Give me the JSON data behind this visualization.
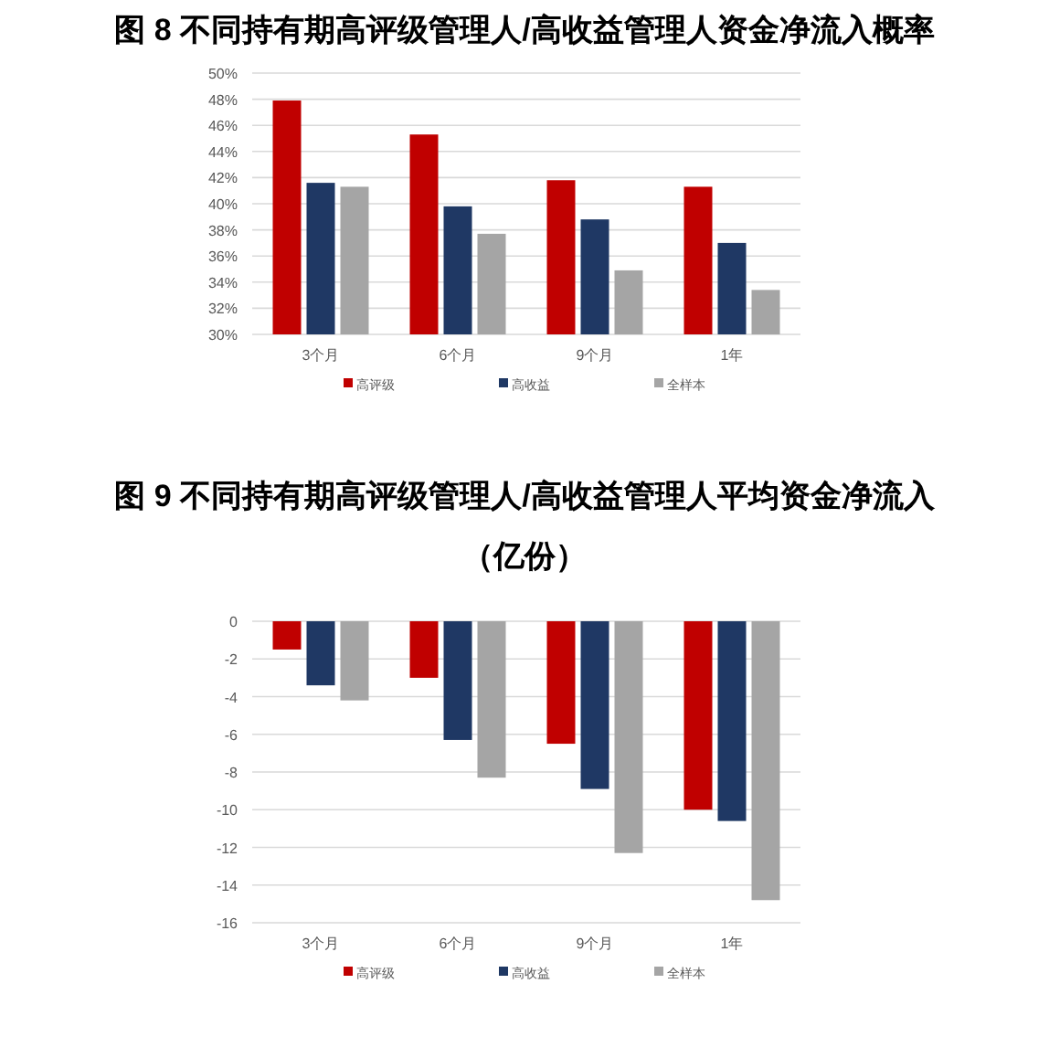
{
  "chart_data": [
    {
      "type": "bar",
      "title": "图 8 不同持有期高评级管理人/高收益管理人资金净流入概率",
      "categories": [
        "3个月",
        "6个月",
        "9个月",
        "1年"
      ],
      "series": [
        {
          "name": "高评级",
          "color": "#c00000",
          "values": [
            47.9,
            45.3,
            41.8,
            41.3
          ]
        },
        {
          "name": "高收益",
          "color": "#1f3864",
          "values": [
            41.6,
            39.8,
            38.8,
            37.0
          ]
        },
        {
          "name": "全样本",
          "color": "#a5a5a5",
          "values": [
            41.3,
            37.7,
            34.9,
            33.4
          ]
        }
      ],
      "ylim": [
        30,
        50
      ],
      "yticks": [
        {
          "value": 30,
          "label": "30%"
        },
        {
          "value": 32,
          "label": "32%"
        },
        {
          "value": 34,
          "label": "34%"
        },
        {
          "value": 36,
          "label": "36%"
        },
        {
          "value": 38,
          "label": "38%"
        },
        {
          "value": 40,
          "label": "40%"
        },
        {
          "value": 42,
          "label": "42%"
        },
        {
          "value": 44,
          "label": "44%"
        },
        {
          "value": 46,
          "label": "46%"
        },
        {
          "value": 48,
          "label": "48%"
        },
        {
          "value": 50,
          "label": "50%"
        }
      ],
      "grid": "y",
      "legend": "bottom"
    },
    {
      "type": "bar",
      "title": "图 9 不同持有期高评级管理人/高收益管理人平均资金净流入（亿份）",
      "categories": [
        "3个月",
        "6个月",
        "9个月",
        "1年"
      ],
      "series": [
        {
          "name": "高评级",
          "color": "#c00000",
          "values": [
            -1.5,
            -3.0,
            -6.5,
            -10.0
          ]
        },
        {
          "name": "高收益",
          "color": "#1f3864",
          "values": [
            -3.4,
            -6.3,
            -8.9,
            -10.6
          ]
        },
        {
          "name": "全样本",
          "color": "#a5a5a5",
          "values": [
            -4.2,
            -8.3,
            -12.3,
            -14.8
          ]
        }
      ],
      "ylim": [
        -16,
        0
      ],
      "yticks": [
        -16,
        -14,
        -12,
        -10,
        -8,
        -6,
        -4,
        -2,
        0
      ],
      "grid": "y",
      "legend": "bottom"
    }
  ]
}
